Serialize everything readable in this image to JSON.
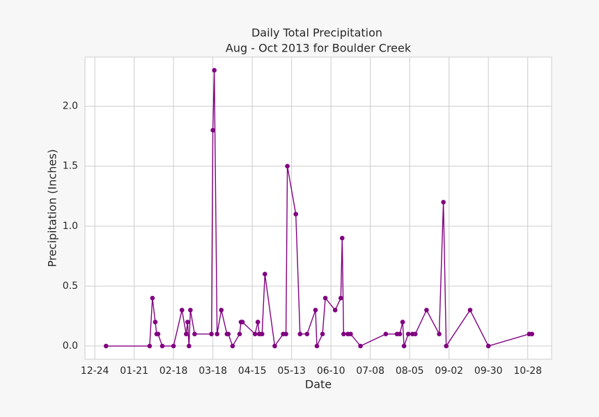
{
  "chart_data": {
    "type": "line",
    "title": "Daily Total Precipitation",
    "subtitle": "Aug - Oct 2013 for Boulder Creek",
    "x_label": "Date",
    "y_label": "Precipitation (Inches)",
    "color": "#800080",
    "grid": true,
    "x": [
      "01-01",
      "02-01",
      "02-03",
      "02-05",
      "02-06",
      "02-07",
      "02-10",
      "02-18",
      "02-24",
      "02-27",
      "02-28",
      "03-01",
      "03-02",
      "03-05",
      "03-17",
      "03-18",
      "03-19",
      "03-21",
      "03-24",
      "03-28",
      "03-29",
      "04-01",
      "04-06",
      "04-07",
      "04-08",
      "04-17",
      "04-19",
      "04-20",
      "04-22",
      "04-24",
      "05-01",
      "05-07",
      "05-09",
      "05-10",
      "05-16",
      "05-19",
      "05-24",
      "05-30",
      "05-31",
      "06-04",
      "06-06",
      "06-13",
      "06-17",
      "06-18",
      "06-19",
      "06-22",
      "06-24",
      "07-01",
      "07-19",
      "07-27",
      "07-29",
      "07-31",
      "08-01",
      "08-04",
      "08-07",
      "08-09",
      "08-17",
      "08-26",
      "08-29",
      "08-31",
      "09-17",
      "09-30",
      "10-29",
      "10-31"
    ],
    "values": [
      0,
      0,
      0.4,
      0.2,
      0.1,
      0.1,
      0,
      0,
      0.3,
      0.1,
      0.2,
      0,
      0.3,
      0.1,
      0.1,
      1.8,
      2.3,
      0.1,
      0.3,
      0.1,
      0.1,
      0,
      0.1,
      0.2,
      0.2,
      0.1,
      0.2,
      0.1,
      0.1,
      0.6,
      0,
      0.1,
      0.1,
      1.5,
      1.1,
      0.1,
      0.1,
      0.3,
      0,
      0.1,
      0.4,
      0.3,
      0.4,
      0.9,
      0.1,
      0.1,
      0.1,
      0,
      0.1,
      0.1,
      0.1,
      0.2,
      0,
      0.1,
      0.1,
      0.1,
      0.3,
      0.1,
      1.2,
      0,
      0.3,
      0,
      0.1,
      0.1
    ],
    "xlim": [
      "12-17",
      "11-14"
    ],
    "xticks": [
      "12-24",
      "01-21",
      "02-18",
      "03-18",
      "04-15",
      "05-13",
      "06-10",
      "07-08",
      "08-05",
      "09-02",
      "09-30",
      "10-28"
    ],
    "ylim": [
      -0.11,
      2.41
    ],
    "yticks": [
      {
        "value": 0,
        "label": "0.0"
      },
      0.5,
      {
        "value": 1,
        "label": "1.0"
      },
      1.5,
      {
        "value": 2,
        "label": "2.0"
      }
    ]
  }
}
